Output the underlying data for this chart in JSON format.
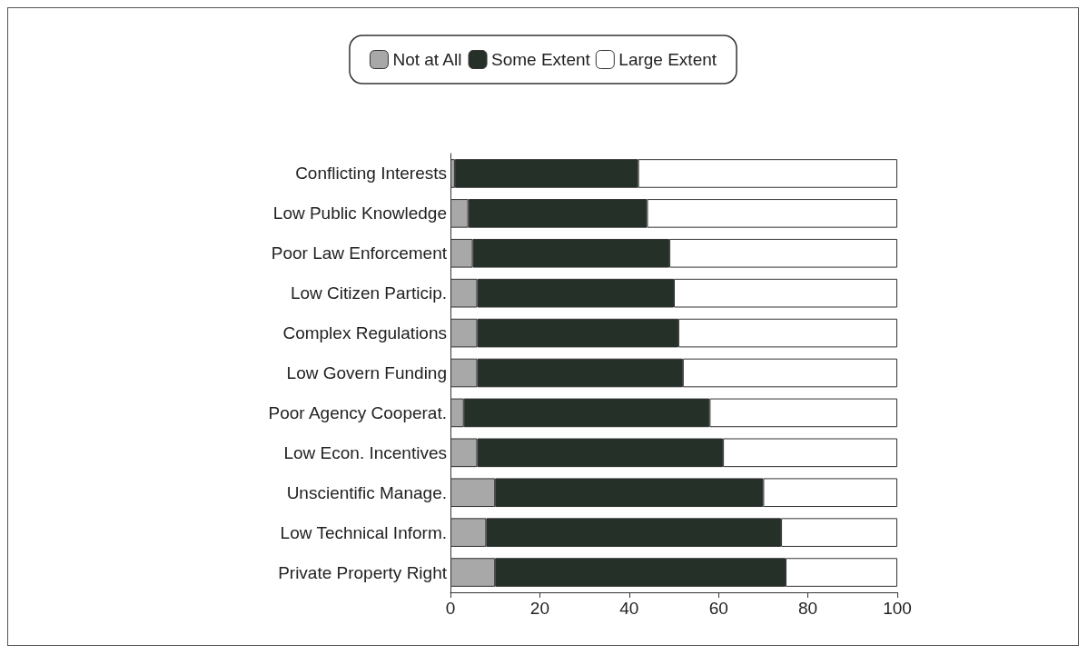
{
  "chart_data": {
    "type": "bar",
    "orientation": "horizontal",
    "stacked": true,
    "legend": "top",
    "grid": false,
    "categories": [
      "Conflicting Interests",
      "Low Public Knowledge",
      "Poor Law Enforcement",
      "Low Citizen Particip.",
      "Complex Regulations",
      "Low Govern Funding",
      "Poor Agency Cooperat.",
      "Low Econ. Incentives",
      "Unscientific Manage.",
      "Low Technical Inform.",
      "Private Property Right"
    ],
    "series": [
      {
        "name": "Not at All",
        "color": "#a8a8a8",
        "values": [
          1,
          4,
          5,
          6,
          6,
          6,
          3,
          6,
          10,
          8,
          10
        ]
      },
      {
        "name": "Some Extent",
        "color": "#253028",
        "values": [
          41,
          40,
          44,
          44,
          45,
          46,
          55,
          55,
          60,
          66,
          65
        ]
      },
      {
        "name": "Large Extent",
        "color": "#ffffff",
        "values": [
          58,
          56,
          51,
          50,
          49,
          48,
          42,
          39,
          30,
          26,
          25
        ]
      }
    ],
    "xlim": [
      0,
      100
    ],
    "xticks": [
      0,
      20,
      40,
      60,
      80,
      100
    ]
  }
}
